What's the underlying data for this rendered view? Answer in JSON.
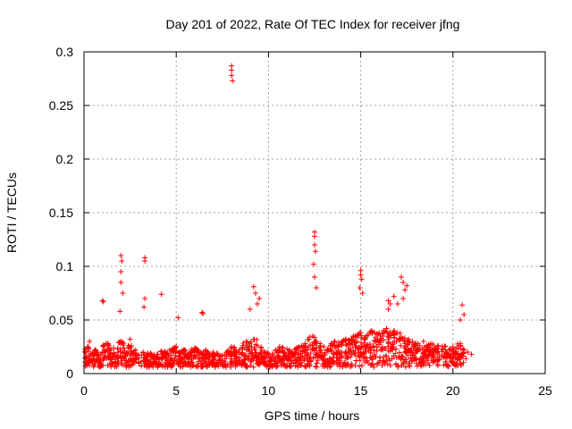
{
  "chart_data": {
    "type": "scatter",
    "title": "Day 201 of 2022, Rate Of TEC Index for receiver jfng",
    "xlabel": "GPS time / hours",
    "ylabel": "ROTI / TECUs",
    "xlim": [
      0,
      25
    ],
    "ylim": [
      0,
      0.3
    ],
    "xticks": [
      0,
      5,
      10,
      15,
      20,
      25
    ],
    "yticks": [
      0,
      0.05,
      0.1,
      0.15,
      0.2,
      0.25,
      0.3
    ],
    "xtick_labels": [
      "0",
      "5",
      "10",
      "15",
      "20",
      "25"
    ],
    "ytick_labels": [
      "0",
      "0.05",
      "0.1",
      "0.15",
      "0.2",
      "0.25",
      "0.3"
    ],
    "grid": true,
    "marker": "plus",
    "color": "#ff0000",
    "series": [
      {
        "name": "ROTI",
        "x": [
          0.05,
          0.2,
          0.4,
          0.6,
          0.8,
          1.0,
          1.2,
          1.4,
          1.6,
          1.8,
          2.0,
          2.2,
          2.4,
          2.6,
          2.8,
          3.2,
          3.4,
          3.6,
          3.8,
          4.0,
          4.2,
          4.4,
          4.6,
          4.8,
          5.0,
          5.2,
          5.4,
          5.6,
          5.8,
          6.0,
          6.2,
          6.4,
          6.6,
          6.8,
          7.0,
          7.2,
          7.5,
          7.8,
          8.0,
          8.2,
          8.4,
          8.6,
          8.8,
          9.0,
          9.2,
          9.4,
          9.6,
          9.8,
          10.0,
          10.2,
          10.4,
          10.6,
          10.8,
          11.0,
          11.2,
          11.4,
          11.6,
          11.8,
          12.0,
          12.2,
          12.4,
          12.6,
          12.8,
          13.0,
          13.2,
          13.4,
          13.6,
          13.8,
          14.0,
          14.2,
          14.4,
          14.6,
          14.8,
          15.0,
          15.2,
          15.4,
          15.6,
          15.8,
          16.0,
          16.2,
          16.4,
          16.6,
          16.8,
          17.0,
          17.2,
          17.4,
          17.6,
          17.8,
          18.0,
          18.2,
          18.4,
          18.6,
          18.8,
          19.0,
          19.2,
          19.6,
          19.8,
          20.0,
          20.2,
          20.4,
          20.6,
          20.8,
          21.0,
          1.0,
          1.05,
          2.0,
          2.05,
          2.0,
          2.0,
          2.1,
          1.95,
          3.3,
          3.3,
          3.3,
          3.25,
          4.2,
          5.1,
          6.4,
          6.45,
          8.0,
          8.0,
          8.0,
          8.05,
          9.2,
          9.3,
          9.4,
          9.5,
          9.0,
          12.5,
          12.5,
          12.5,
          12.55,
          12.45,
          12.5,
          12.6,
          15.0,
          15.0,
          15.05,
          14.95,
          15.1,
          16.5,
          16.5,
          16.6,
          17.2,
          17.3,
          17.4,
          17.5,
          17.3,
          17.0,
          16.8,
          20.5,
          20.6,
          20.4,
          10.5,
          11.5,
          13.5,
          14.5,
          18.5,
          19.5,
          0.3,
          0.7,
          1.5,
          2.5,
          3.7,
          4.5,
          5.5,
          6.7,
          7.3,
          8.7,
          9.7,
          10.7,
          11.7,
          12.7,
          13.7,
          14.7,
          15.7,
          16.7,
          17.7,
          18.7,
          19.7,
          20.7
        ],
        "y": [
          0.02,
          0.025,
          0.018,
          0.022,
          0.015,
          0.02,
          0.028,
          0.019,
          0.024,
          0.017,
          0.03,
          0.021,
          0.026,
          0.018,
          0.022,
          0.02,
          0.016,
          0.019,
          0.014,
          0.018,
          0.021,
          0.02,
          0.017,
          0.023,
          0.025,
          0.019,
          0.022,
          0.016,
          0.02,
          0.024,
          0.021,
          0.018,
          0.022,
          0.015,
          0.02,
          0.019,
          0.017,
          0.021,
          0.025,
          0.022,
          0.02,
          0.024,
          0.03,
          0.028,
          0.032,
          0.026,
          0.024,
          0.02,
          0.018,
          0.016,
          0.022,
          0.025,
          0.02,
          0.023,
          0.02,
          0.018,
          0.024,
          0.026,
          0.028,
          0.032,
          0.035,
          0.03,
          0.028,
          0.025,
          0.022,
          0.028,
          0.03,
          0.026,
          0.03,
          0.032,
          0.028,
          0.035,
          0.03,
          0.038,
          0.032,
          0.036,
          0.04,
          0.034,
          0.038,
          0.035,
          0.042,
          0.036,
          0.04,
          0.038,
          0.034,
          0.03,
          0.032,
          0.03,
          0.028,
          0.026,
          0.03,
          0.025,
          0.028,
          0.024,
          0.026,
          0.02,
          0.022,
          0.025,
          0.024,
          0.028,
          0.022,
          0.02,
          0.018,
          0.068,
          0.067,
          0.11,
          0.105,
          0.095,
          0.085,
          0.075,
          0.058,
          0.108,
          0.105,
          0.07,
          0.062,
          0.074,
          0.052,
          0.057,
          0.056,
          0.287,
          0.283,
          0.278,
          0.273,
          0.081,
          0.075,
          0.065,
          0.07,
          0.06,
          0.132,
          0.128,
          0.12,
          0.114,
          0.102,
          0.09,
          0.08,
          0.096,
          0.092,
          0.088,
          0.08,
          0.075,
          0.068,
          0.06,
          0.065,
          0.09,
          0.085,
          0.078,
          0.082,
          0.07,
          0.065,
          0.072,
          0.064,
          0.055,
          0.05,
          0.01,
          0.012,
          0.015,
          0.018,
          0.02,
          0.015,
          0.03,
          0.012,
          0.01,
          0.032,
          0.008,
          0.012,
          0.01,
          0.014,
          0.012,
          0.016,
          0.014,
          0.012,
          0.014,
          0.016,
          0.018,
          0.02,
          0.022,
          0.024,
          0.02,
          0.018,
          0.016,
          0.014
        ]
      }
    ]
  }
}
